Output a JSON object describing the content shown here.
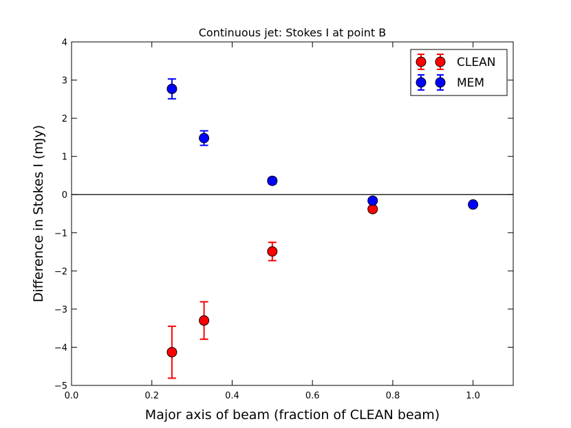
{
  "chart_data": {
    "type": "scatter",
    "title": "Continuous jet: Stokes I at point B",
    "xlabel": "Major axis of beam (fraction of CLEAN beam)",
    "ylabel": "Difference in Stokes I (mJy)",
    "xlim": [
      0.0,
      1.1
    ],
    "ylim": [
      -5,
      4
    ],
    "xticks": [
      0.0,
      0.2,
      0.4,
      0.6,
      0.8,
      1.0
    ],
    "xtick_labels": [
      "0.0",
      "0.2",
      "0.4",
      "0.6",
      "0.8",
      "1.0"
    ],
    "yticks": [
      -5,
      -4,
      -3,
      -2,
      -1,
      0,
      1,
      2,
      3,
      4
    ],
    "ytick_labels": [
      "−5",
      "−4",
      "−3",
      "−2",
      "−1",
      "0",
      "1",
      "2",
      "3",
      "4"
    ],
    "zero_line": true,
    "grid": false,
    "legend_position": "top-right",
    "series": [
      {
        "name": "CLEAN",
        "color": "#ff0000",
        "points": [
          {
            "x": 0.25,
            "y": -4.13,
            "err": 0.68
          },
          {
            "x": 0.33,
            "y": -3.3,
            "err": 0.49
          },
          {
            "x": 0.5,
            "y": -1.49,
            "err": 0.24
          },
          {
            "x": 0.75,
            "y": -0.38,
            "err": 0.05
          }
        ]
      },
      {
        "name": "MEM",
        "color": "#0000ff",
        "points": [
          {
            "x": 0.25,
            "y": 2.77,
            "err": 0.26
          },
          {
            "x": 0.33,
            "y": 1.48,
            "err": 0.19
          },
          {
            "x": 0.5,
            "y": 0.36,
            "err": 0.08
          },
          {
            "x": 0.75,
            "y": -0.16,
            "err": 0.04
          },
          {
            "x": 1.0,
            "y": -0.26,
            "err": 0.03
          }
        ]
      }
    ]
  }
}
